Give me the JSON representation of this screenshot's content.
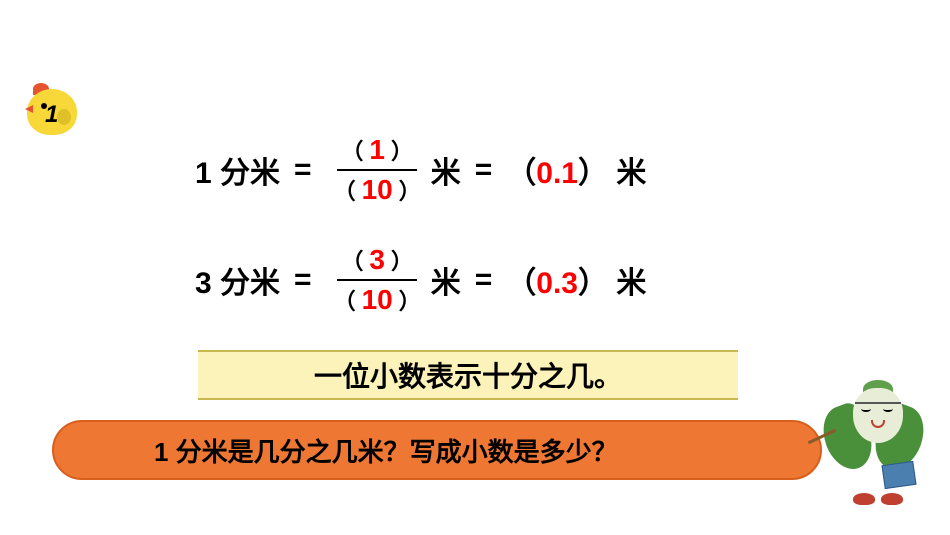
{
  "badge": {
    "number": "1"
  },
  "equations": [
    {
      "lhs_value": "1",
      "lhs_unit": "分米",
      "numerator": "1",
      "denominator": "10",
      "frac_unit": "米",
      "decimal": "0.1",
      "decimal_unit": "米"
    },
    {
      "lhs_value": "3",
      "lhs_unit": "分米",
      "numerator": "3",
      "denominator": "10",
      "frac_unit": "米",
      "decimal": "0.3",
      "decimal_unit": "米"
    }
  ],
  "banner1": {
    "text": "一位小数表示十分之几。"
  },
  "banner2": {
    "text": "1 分米是几分之几米？写成小数是多少？"
  },
  "colors": {
    "highlight": "#ff0000",
    "banner1_bg": "#fcf3ba",
    "banner1_border": "#c9b84e",
    "banner2_bg": "#ed7733",
    "banner2_border": "#d85f1c",
    "chick_body": "#f7d838",
    "cabbage_leaf": "#4a8f3a"
  }
}
